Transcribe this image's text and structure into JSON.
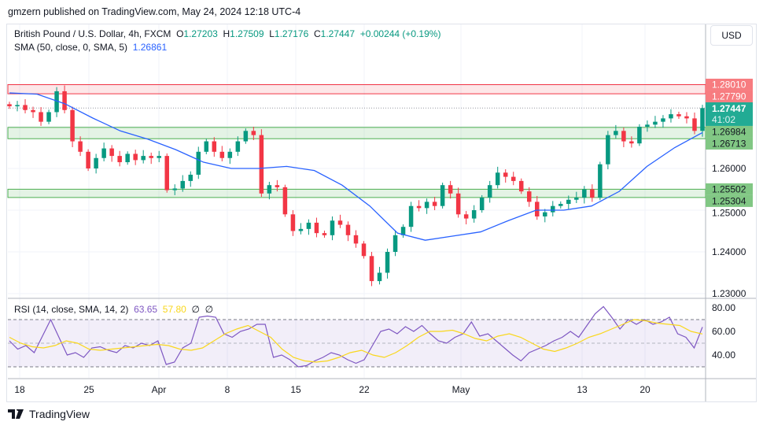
{
  "publish_line": "gmzern published on TradingView.com, May 24, 2024 12:18 UTC-4",
  "legend": {
    "symbol": "British Pound / U.S. Dollar, 4h, FXCM",
    "o_label": "O",
    "o": "1.27203",
    "h_label": "H",
    "h": "1.27509",
    "l_label": "L",
    "l": "1.27176",
    "c_label": "C",
    "c": "1.27447",
    "change": "+0.00244 (+0.19%)",
    "sma_label": "SMA (50, close, 0, SMA, 5)",
    "sma_value": "1.26861"
  },
  "rsi_legend": {
    "label": "RSI (14, close, SMA, 14, 2)",
    "rsi": "63.65",
    "rsi_sma": "57.80",
    "na1": "∅",
    "na2": "∅"
  },
  "currency_button": "USD",
  "footer": {
    "brand": "TradingView",
    "logo_icon": "tradingview-logo"
  },
  "colors": {
    "up": "#089981",
    "down": "#f23645",
    "sma": "#2962ff",
    "rsi": "#7e57c2",
    "rsi_sma": "#f9d71c",
    "resistance_zone": "#f77c80",
    "support_zone": "#81c784"
  },
  "chart_data": [
    {
      "type": "candlestick",
      "ylim": [
        1.229,
        1.286
      ],
      "y_ticks": [
        "1.26000",
        "1.25000",
        "1.24000",
        "1.23000"
      ],
      "x_ticks": [
        "18",
        "25",
        "Apr",
        "8",
        "15",
        "22",
        "May",
        "13",
        "20"
      ],
      "last_price": {
        "value": "1.27447",
        "countdown": "41:02"
      },
      "zones": [
        {
          "kind": "resistance",
          "low": 1.2779,
          "high": 1.2801,
          "low_label": "1.27790",
          "high_label": "1.28010"
        },
        {
          "kind": "support",
          "low": 1.26713,
          "high": 1.26984,
          "low_label": "1.26713",
          "high_label": "1.26984"
        },
        {
          "kind": "support",
          "low": 1.25304,
          "high": 1.25502,
          "low_label": "1.25304",
          "high_label": "1.25502"
        }
      ],
      "closes": [
        1.2749,
        1.2752,
        1.274,
        1.2735,
        1.2712,
        1.2735,
        1.2785,
        1.274,
        1.2665,
        1.264,
        1.26,
        1.2625,
        1.2648,
        1.263,
        1.2615,
        1.2635,
        1.262,
        1.263,
        1.2625,
        1.263,
        1.2548,
        1.2552,
        1.257,
        1.2585,
        1.264,
        1.2665,
        1.264,
        1.2625,
        1.264,
        1.2665,
        1.269,
        1.268,
        1.254,
        1.256,
        1.2555,
        1.249,
        1.245,
        1.2455,
        1.247,
        1.2445,
        1.244,
        1.2475,
        1.2465,
        1.244,
        1.242,
        1.239,
        1.233,
        1.235,
        1.24,
        1.244,
        1.246,
        1.251,
        1.2505,
        1.252,
        1.251,
        1.256,
        1.254,
        1.249,
        1.248,
        1.25,
        1.253,
        1.256,
        1.259,
        1.258,
        1.257,
        1.2545,
        1.252,
        1.2485,
        1.2495,
        1.251,
        1.2515,
        1.2525,
        1.253,
        1.255,
        1.253,
        1.261,
        1.268,
        1.269,
        1.2665,
        1.266,
        1.27,
        1.2705,
        1.2712,
        1.272,
        1.273,
        1.2725,
        1.272,
        1.269,
        1.27447
      ],
      "sma50": [
        1.2781,
        1.2778,
        1.2755,
        1.2721,
        1.269,
        1.267,
        1.2645,
        1.2615,
        1.26,
        1.26,
        1.2605,
        1.2595,
        1.256,
        1.251,
        1.2445,
        1.2428,
        1.2438,
        1.2448,
        1.2475,
        1.25,
        1.25,
        1.251,
        1.2545,
        1.2605,
        1.265,
        1.2686
      ]
    },
    {
      "type": "line",
      "name": "RSI",
      "ylim": [
        20,
        88
      ],
      "y_ticks": [
        "80.00",
        "60.00",
        "40.00"
      ],
      "bands": [
        70,
        50,
        30
      ],
      "rsi": [
        52,
        45,
        48,
        42,
        56,
        70,
        55,
        40,
        42,
        38,
        46,
        47,
        44,
        42,
        48,
        46,
        50,
        48,
        52,
        32,
        34,
        46,
        50,
        72,
        73,
        72,
        58,
        55,
        60,
        62,
        66,
        66,
        38,
        40,
        36,
        30,
        31,
        35,
        38,
        42,
        40,
        36,
        33,
        36,
        48,
        60,
        62,
        58,
        64,
        60,
        65,
        58,
        52,
        50,
        55,
        58,
        68,
        56,
        58,
        52,
        46,
        40,
        35,
        42,
        45,
        48,
        52,
        55,
        60,
        55,
        65,
        75,
        81,
        72,
        62,
        70,
        66,
        70,
        66,
        68,
        72,
        58,
        55,
        46,
        63.65
      ],
      "rsi_sma": [
        55,
        50,
        47,
        46,
        48,
        52,
        50,
        45,
        44,
        45,
        46,
        47,
        48,
        49,
        48,
        45,
        44,
        46,
        52,
        58,
        62,
        65,
        60,
        55,
        45,
        38,
        35,
        34,
        35,
        38,
        42,
        44,
        40,
        38,
        42,
        48,
        55,
        60,
        60,
        61,
        58,
        54,
        52,
        56,
        58,
        55,
        50,
        45,
        43,
        46,
        50,
        55,
        58,
        62,
        66,
        70,
        69,
        67,
        66,
        65,
        60,
        57.8
      ]
    }
  ]
}
